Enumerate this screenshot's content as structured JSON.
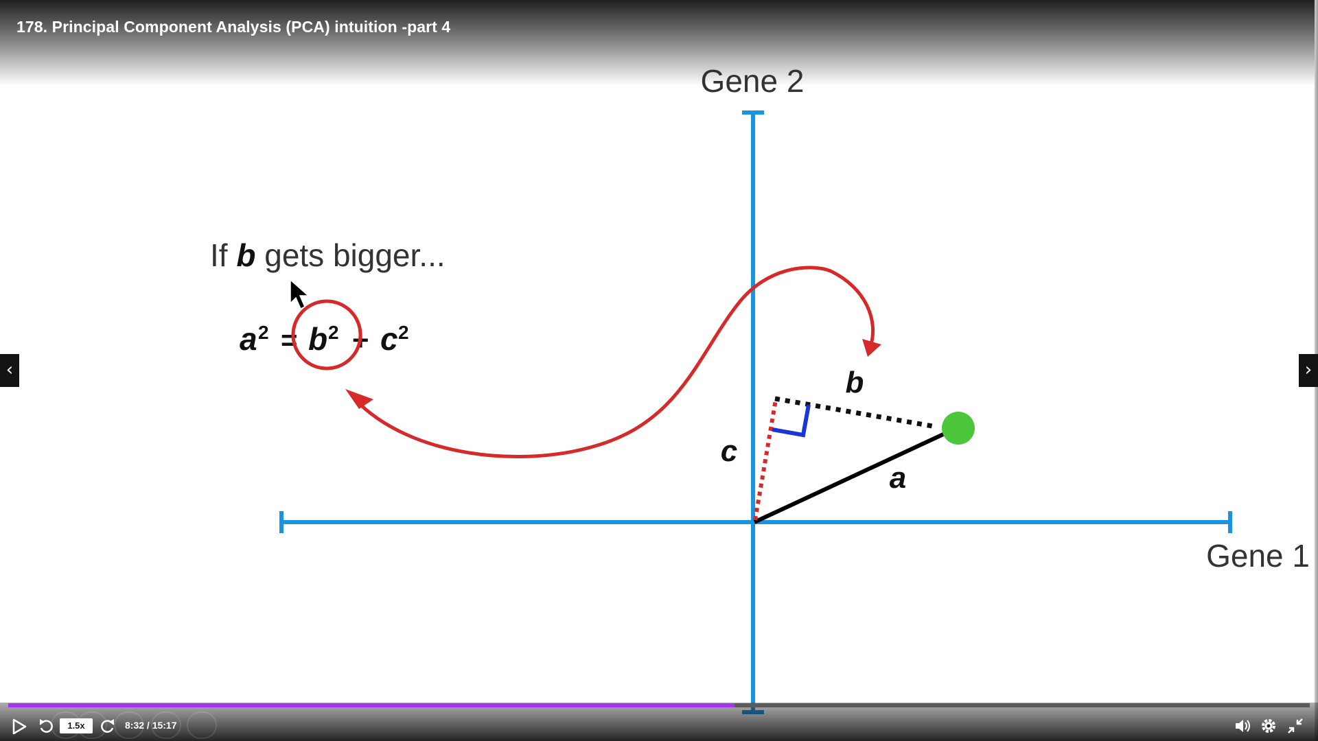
{
  "video": {
    "title": "178. Principal Component Analysis (PCA) intuition -part 4"
  },
  "slide": {
    "axis_y_label": "Gene 2",
    "axis_x_label": "Gene 1",
    "caption_prefix": "If ",
    "caption_var": "b",
    "caption_suffix": " gets bigger...",
    "equation": {
      "a": "a",
      "b": "b",
      "c": "c",
      "exp": "2",
      "eq": "=",
      "plus": "+"
    },
    "segment_labels": {
      "b": "b",
      "c": "c",
      "a": "a"
    },
    "colors": {
      "axis": "#1b93e0",
      "arrow": "#d62a2a",
      "point": "#4cc63a",
      "right_angle": "#1a35d6",
      "c_segment": "#d62a2a"
    }
  },
  "controls": {
    "speed": "1.5x",
    "time": "8:32 / 15:17",
    "progress_fraction": 0.558,
    "icons": {
      "play": "play-icon",
      "rewind": "rewind-icon",
      "forward": "forward-icon",
      "volume": "volume-icon",
      "settings": "gear-icon",
      "exit_fullscreen": "exit-fullscreen-icon",
      "prev": "chevron-left-icon",
      "next": "chevron-right-icon"
    },
    "prev_glyph": "‹",
    "next_glyph": "›",
    "accent": "#a435f0"
  }
}
